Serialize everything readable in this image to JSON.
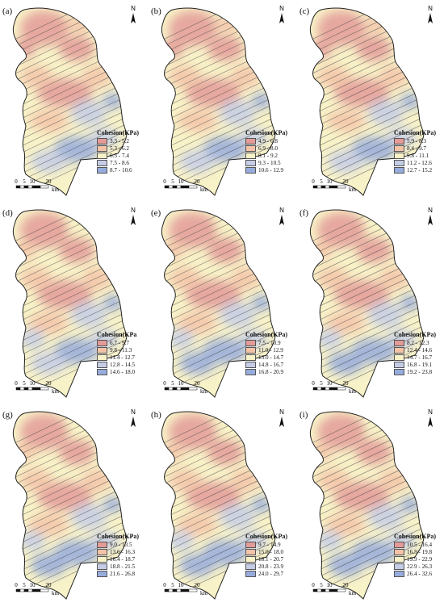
{
  "figure": {
    "north_symbol": "N",
    "scale_ticks": [
      "0",
      "5",
      "10",
      "20"
    ],
    "scale_unit": "km",
    "class_colors": [
      "#e39b98",
      "#f3c3a8",
      "#f8f2c8",
      "#c4cce6",
      "#96acdc"
    ],
    "panels": [
      {
        "label": "(a)",
        "legend_title": "Cohesion(KPa)",
        "classes": [
          "3.3 - 5.2",
          "5.3 - 6.2",
          "6.3 - 7.4",
          "7.5 - 8.6",
          "8.7 - 10.6"
        ]
      },
      {
        "label": "(b)",
        "legend_title": "Cohesion(KPa)",
        "classes": [
          "4.9 - 6.8",
          "6.9 - 8.0",
          "8.1 - 9.2",
          "9.3 - 10.5",
          "10.6 - 12.9"
        ]
      },
      {
        "label": "(c)",
        "legend_title": "Cohesion(KPa)",
        "classes": [
          "5.9 - 8.3",
          "8.4 - 9.7",
          "9.8 - 11.1",
          "11.2 - 12.6",
          "12.7 - 15.2"
        ]
      },
      {
        "label": "(d)",
        "legend_title": "Cohesion(KPa",
        "classes": [
          "6.7 - 9.7",
          "9.8 - 11.3",
          "11.4 - 12.7",
          "12.8 - 14.5",
          "14.6 - 18.0"
        ]
      },
      {
        "label": "(e)",
        "legend_title": "Cohesion(KPa)",
        "classes": [
          "7.5 - 10.9",
          "11.0 - 12.9",
          "13.0 - 14.7",
          "14.8 - 16.7",
          "16.8 - 20.9"
        ]
      },
      {
        "label": "(f)",
        "legend_title": "Cohesion(KPa)",
        "classes": [
          "8.2 - 12.3",
          "12.4 - 14.6",
          "14.7 - 16.7",
          "16.8 - 19.1",
          "19.2 - 23.8"
        ]
      },
      {
        "label": "(g)",
        "legend_title": "Cohesion(KPa)",
        "classes": [
          "9.0 - 13.5",
          "13.6 - 16.3",
          "16.4 - 18.7",
          "18.8 - 21.5",
          "21.6 - 26.8"
        ]
      },
      {
        "label": "(h)",
        "legend_title": "Cohesion(KPa)",
        "classes": [
          "9.7 - 14.9",
          "15.0 - 18.0",
          "18.1 - 20.7",
          "20.8 - 23.9",
          "24.0 - 29.7"
        ]
      },
      {
        "label": "(i)",
        "legend_title": "Cohesion(KPa)",
        "classes": [
          "10.5 - 16.4",
          "16.5 - 19.8",
          "19.9 - 22.9",
          "22.9 - 26.3",
          "26.4 - 32.6"
        ]
      }
    ]
  }
}
